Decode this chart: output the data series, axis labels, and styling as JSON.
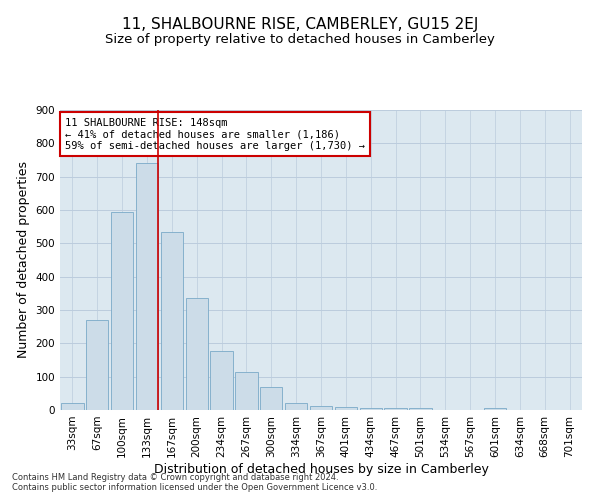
{
  "title": "11, SHALBOURNE RISE, CAMBERLEY, GU15 2EJ",
  "subtitle": "Size of property relative to detached houses in Camberley",
  "xlabel": "Distribution of detached houses by size in Camberley",
  "ylabel": "Number of detached properties",
  "categories": [
    "33sqm",
    "67sqm",
    "100sqm",
    "133sqm",
    "167sqm",
    "200sqm",
    "234sqm",
    "267sqm",
    "300sqm",
    "334sqm",
    "367sqm",
    "401sqm",
    "434sqm",
    "467sqm",
    "501sqm",
    "534sqm",
    "567sqm",
    "601sqm",
    "634sqm",
    "668sqm",
    "701sqm"
  ],
  "values": [
    20,
    270,
    595,
    740,
    535,
    335,
    178,
    115,
    68,
    22,
    12,
    10,
    6,
    5,
    5,
    0,
    0,
    6,
    0,
    0,
    0
  ],
  "bar_color": "#ccdce8",
  "bar_edge_color": "#7aaac8",
  "grid_color": "#bbccdd",
  "background_color": "#dce8f0",
  "annotation_text": "11 SHALBOURNE RISE: 148sqm\n← 41% of detached houses are smaller (1,186)\n59% of semi-detached houses are larger (1,730) →",
  "annotation_box_color": "#ffffff",
  "annotation_box_edge_color": "#cc0000",
  "vline_color": "#cc0000",
  "vline_x": 3.45,
  "ylim": [
    0,
    900
  ],
  "yticks": [
    0,
    100,
    200,
    300,
    400,
    500,
    600,
    700,
    800,
    900
  ],
  "footnote1": "Contains HM Land Registry data © Crown copyright and database right 2024.",
  "footnote2": "Contains public sector information licensed under the Open Government Licence v3.0.",
  "title_fontsize": 11,
  "subtitle_fontsize": 9.5,
  "tick_fontsize": 7.5,
  "ylabel_fontsize": 9,
  "xlabel_fontsize": 9,
  "annotation_fontsize": 7.5,
  "footnote_fontsize": 6
}
